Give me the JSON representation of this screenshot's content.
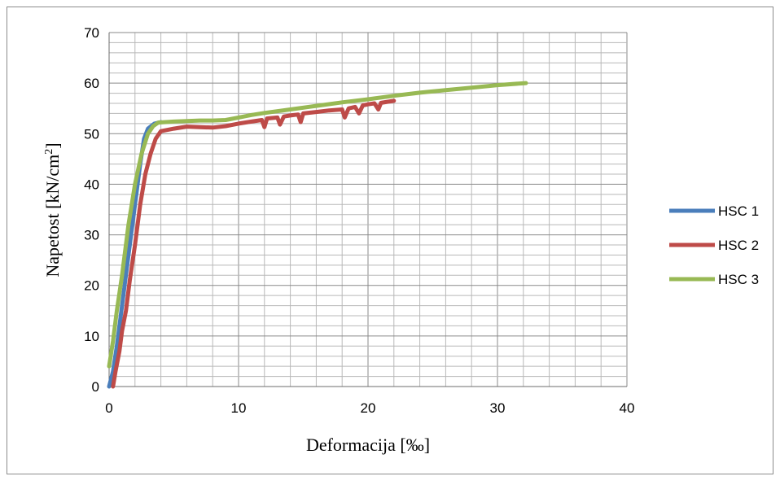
{
  "chart_data": {
    "type": "line",
    "title": "",
    "xlabel": "Deformacija [‰]",
    "ylabel_main": "Napetost [kN/cm",
    "ylabel_sup": "2",
    "ylabel_end": "]",
    "xlim": [
      0,
      40
    ],
    "ylim": [
      0,
      70
    ],
    "x_major_ticks": [
      0,
      10,
      20,
      30,
      40
    ],
    "y_major_ticks": [
      0,
      10,
      20,
      30,
      40,
      50,
      60,
      70
    ],
    "x_tick_labels": [
      "0",
      "10",
      "20",
      "30",
      "40"
    ],
    "y_tick_labels": [
      "0",
      "10",
      "20",
      "30",
      "40",
      "50",
      "60",
      "70"
    ],
    "x_minor_step": 2,
    "y_minor_step": 2,
    "grid": true,
    "legend_position": "right",
    "series": [
      {
        "name": "HSC 1",
        "color": "#4a7ebb",
        "points": [
          [
            0,
            0
          ],
          [
            0.3,
            3
          ],
          [
            0.6,
            8
          ],
          [
            1.0,
            16
          ],
          [
            1.5,
            26
          ],
          [
            2.0,
            36
          ],
          [
            2.4,
            44
          ],
          [
            2.7,
            49
          ],
          [
            3.0,
            51
          ],
          [
            3.5,
            52
          ],
          [
            4.0,
            52.3
          ]
        ]
      },
      {
        "name": "HSC 2",
        "color": "#be4b48",
        "points": [
          [
            0.3,
            0
          ],
          [
            0.5,
            3
          ],
          [
            0.8,
            7
          ],
          [
            1.0,
            11
          ],
          [
            1.3,
            15
          ],
          [
            1.6,
            21
          ],
          [
            2.0,
            28
          ],
          [
            2.4,
            36
          ],
          [
            2.8,
            42
          ],
          [
            3.2,
            46
          ],
          [
            3.6,
            49
          ],
          [
            4.0,
            50.5
          ],
          [
            5.0,
            51
          ],
          [
            6.0,
            51.4
          ],
          [
            7.0,
            51.3
          ],
          [
            8.0,
            51.2
          ],
          [
            9.0,
            51.5
          ],
          [
            10.0,
            52.0
          ],
          [
            11.0,
            52.4
          ],
          [
            11.8,
            52.7
          ],
          [
            12.0,
            51.3
          ],
          [
            12.2,
            53.0
          ],
          [
            13.0,
            53.2
          ],
          [
            13.2,
            51.8
          ],
          [
            13.5,
            53.4
          ],
          [
            14.0,
            53.6
          ],
          [
            14.6,
            53.8
          ],
          [
            14.8,
            52.3
          ],
          [
            15.0,
            54.0
          ],
          [
            16.0,
            54.3
          ],
          [
            17.0,
            54.6
          ],
          [
            18.0,
            54.8
          ],
          [
            18.2,
            53.2
          ],
          [
            18.5,
            55.0
          ],
          [
            19.0,
            55.3
          ],
          [
            19.3,
            54.0
          ],
          [
            19.6,
            55.6
          ],
          [
            20.0,
            55.8
          ],
          [
            20.5,
            56.0
          ],
          [
            20.8,
            54.8
          ],
          [
            21.0,
            56.1
          ],
          [
            21.5,
            56.3
          ],
          [
            22.0,
            56.5
          ]
        ]
      },
      {
        "name": "HSC 3",
        "color": "#98b954",
        "points": [
          [
            0,
            4
          ],
          [
            0.3,
            9
          ],
          [
            0.6,
            15
          ],
          [
            1.0,
            22
          ],
          [
            1.5,
            32
          ],
          [
            2.0,
            40
          ],
          [
            2.5,
            46
          ],
          [
            3.0,
            50
          ],
          [
            3.4,
            51.5
          ],
          [
            3.8,
            52.2
          ],
          [
            5.0,
            52.4
          ],
          [
            6.0,
            52.5
          ],
          [
            7.0,
            52.6
          ],
          [
            8.0,
            52.6
          ],
          [
            9.0,
            52.7
          ],
          [
            10.0,
            53.2
          ],
          [
            11.0,
            53.7
          ],
          [
            12.0,
            54.1
          ],
          [
            14.0,
            54.8
          ],
          [
            16.0,
            55.5
          ],
          [
            18.0,
            56.2
          ],
          [
            20.0,
            56.8
          ],
          [
            22.0,
            57.5
          ],
          [
            24.0,
            58.1
          ],
          [
            26.0,
            58.6
          ],
          [
            28.0,
            59.1
          ],
          [
            30.0,
            59.6
          ],
          [
            32.2,
            60.0
          ]
        ]
      }
    ]
  }
}
